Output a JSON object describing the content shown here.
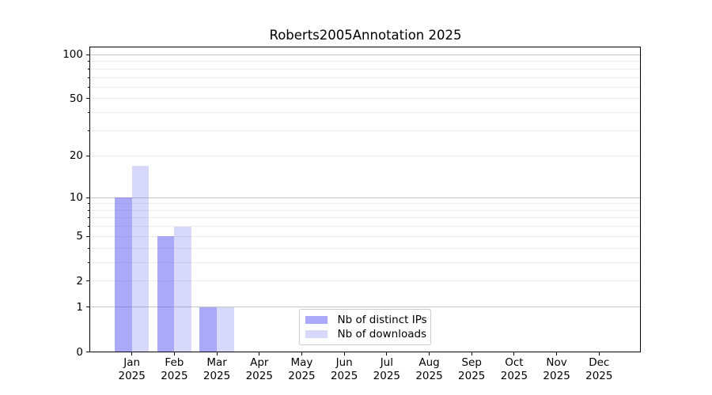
{
  "chart_data": {
    "type": "bar",
    "title": "Roberts2005Annotation 2025",
    "categories": [
      "Jan",
      "Feb",
      "Mar",
      "Apr",
      "May",
      "Jun",
      "Jul",
      "Aug",
      "Sep",
      "Oct",
      "Nov",
      "Dec"
    ],
    "year_label": "2025",
    "series": [
      {
        "name": "Nb of distinct IPs",
        "color": "rgba(98,98,240,0.55)",
        "values": [
          10,
          5,
          1,
          0,
          0,
          0,
          0,
          0,
          0,
          0,
          0,
          0
        ]
      },
      {
        "name": "Nb of downloads",
        "color": "rgba(98,98,240,0.25)",
        "values": [
          17,
          6,
          1,
          0,
          0,
          0,
          0,
          0,
          0,
          0,
          0,
          0
        ]
      }
    ],
    "xlabel": "",
    "ylabel": "",
    "yticks": [
      0,
      1,
      2,
      5,
      10,
      20,
      50,
      100
    ],
    "scale": "log1p",
    "ylim": [
      0,
      113
    ],
    "grid": "on",
    "legend_position": "lower center"
  }
}
